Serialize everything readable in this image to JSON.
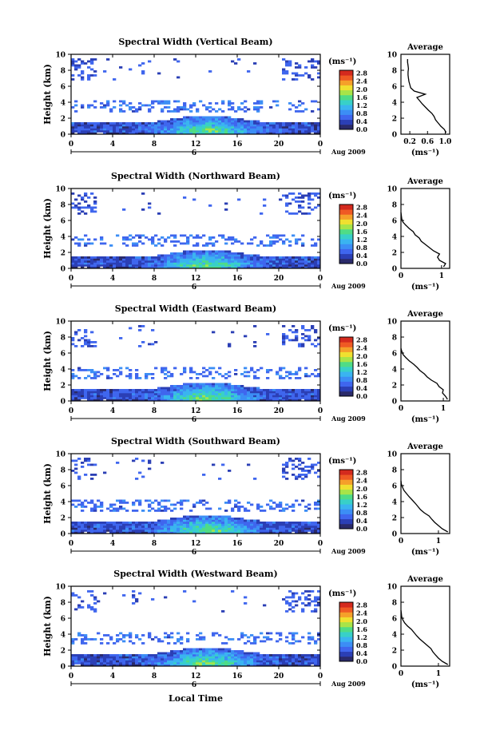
{
  "figure": {
    "xlabel": "Local Time",
    "ylabel": "Height (km)",
    "date_label": "Aug 2009",
    "day_label": "6",
    "units_label": "(ms⁻¹)",
    "avg_title": "Average",
    "avg_xlabel": "(ms⁻¹)"
  },
  "colorbar": {
    "ticks": [
      "0.0",
      "0.4",
      "0.8",
      "1.2",
      "1.6",
      "2.0",
      "2.4",
      "2.8"
    ],
    "colors": [
      "#2a2a6a",
      "#2b3fb5",
      "#3f66ee",
      "#3c8ef5",
      "#3ab4f0",
      "#38d0c8",
      "#4fdc86",
      "#a8e448",
      "#f0e030",
      "#f5a02a",
      "#ef5a24",
      "#d42a1e"
    ]
  },
  "chart_data": [
    {
      "type": "heatmap",
      "title": "Spectral Width (Vertical Beam)",
      "x_ticks": [
        "0",
        "4",
        "8",
        "12",
        "16",
        "20",
        "0"
      ],
      "xlim": [
        0,
        24
      ],
      "y_ticks": [
        "0",
        "2",
        "4",
        "6",
        "8",
        "10"
      ],
      "ylim": [
        0,
        10
      ],
      "value_range": [
        0.0,
        2.8
      ],
      "average_profile": {
        "type": "line",
        "title": "Average",
        "x_ticks": [
          "0.2",
          "0.6",
          "1.0"
        ],
        "xlim": [
          0,
          1.1
        ],
        "y_ticks": [
          "0",
          "2",
          "4",
          "6",
          "8",
          "10"
        ],
        "ylim": [
          0,
          10
        ],
        "height_km": [
          0.2,
          0.6,
          1.0,
          1.4,
          1.8,
          2.2,
          2.6,
          3.0,
          3.4,
          3.8,
          4.2,
          4.6,
          5.0,
          5.4,
          5.8,
          6.2,
          6.6,
          7.0,
          7.4,
          7.8,
          8.2,
          8.6,
          9.0,
          9.4
        ],
        "width_ms": [
          1.02,
          0.98,
          0.9,
          0.84,
          0.78,
          0.75,
          0.7,
          0.62,
          0.55,
          0.48,
          0.42,
          0.36,
          0.55,
          0.3,
          0.22,
          0.2,
          0.18,
          0.17,
          0.16,
          0.16,
          0.17,
          0.16,
          0.15,
          0.15
        ]
      }
    },
    {
      "type": "heatmap",
      "title": "Spectral Width (Northward Beam)",
      "x_ticks": [
        "0",
        "4",
        "8",
        "12",
        "16",
        "20",
        "0"
      ],
      "xlim": [
        0,
        24
      ],
      "y_ticks": [
        "0",
        "2",
        "4",
        "6",
        "8",
        "10"
      ],
      "ylim": [
        0,
        10
      ],
      "value_range": [
        0.0,
        2.8
      ],
      "average_profile": {
        "type": "line",
        "title": "Average",
        "x_ticks": [
          "0",
          "1"
        ],
        "xlim": [
          0,
          1.2
        ],
        "y_ticks": [
          "0",
          "2",
          "4",
          "6",
          "8",
          "10"
        ],
        "ylim": [
          0,
          10
        ],
        "height_km": [
          0.2,
          0.6,
          1.0,
          1.4,
          1.8,
          2.2,
          2.6,
          3.0,
          3.4,
          3.8,
          4.2,
          4.6,
          5.0,
          5.4,
          5.8,
          6.2,
          6.6,
          7.0
        ],
        "width_ms": [
          1.05,
          1.1,
          0.95,
          0.9,
          0.95,
          0.8,
          0.7,
          0.6,
          0.5,
          0.45,
          0.35,
          0.3,
          0.2,
          0.12,
          0.05,
          0.02,
          0.01,
          0.0
        ]
      }
    },
    {
      "type": "heatmap",
      "title": "Spectral Width (Eastward Beam)",
      "x_ticks": [
        "0",
        "4",
        "8",
        "12",
        "16",
        "20",
        "0"
      ],
      "xlim": [
        0,
        24
      ],
      "y_ticks": [
        "0",
        "2",
        "4",
        "6",
        "8",
        "10"
      ],
      "ylim": [
        0,
        10
      ],
      "value_range": [
        0.0,
        2.8
      ],
      "average_profile": {
        "type": "line",
        "title": "Average",
        "x_ticks": [
          "0",
          "1"
        ],
        "xlim": [
          0,
          1.15
        ],
        "y_ticks": [
          "0",
          "2",
          "4",
          "6",
          "8",
          "10"
        ],
        "ylim": [
          0,
          10
        ],
        "height_km": [
          0.2,
          0.6,
          1.0,
          1.4,
          1.8,
          2.2,
          2.6,
          3.0,
          3.4,
          3.8,
          4.2,
          4.6,
          5.0,
          5.4,
          5.8,
          6.2,
          6.6
        ],
        "width_ms": [
          1.1,
          1.05,
          0.98,
          1.0,
          0.9,
          0.85,
          0.72,
          0.62,
          0.55,
          0.45,
          0.38,
          0.3,
          0.2,
          0.12,
          0.05,
          0.02,
          0.0
        ]
      }
    },
    {
      "type": "heatmap",
      "title": "Spectral Width (Southward Beam)",
      "x_ticks": [
        "0",
        "4",
        "8",
        "12",
        "16",
        "20",
        "0"
      ],
      "xlim": [
        0,
        24
      ],
      "y_ticks": [
        "0",
        "2",
        "4",
        "6",
        "8",
        "10"
      ],
      "ylim": [
        0,
        10
      ],
      "value_range": [
        0.0,
        2.8
      ],
      "average_profile": {
        "type": "line",
        "title": "Average",
        "x_ticks": [
          "0",
          "1"
        ],
        "xlim": [
          0,
          1.3
        ],
        "y_ticks": [
          "0",
          "2",
          "4",
          "6",
          "8",
          "10"
        ],
        "ylim": [
          0,
          10
        ],
        "height_km": [
          0.2,
          0.6,
          1.0,
          1.4,
          1.8,
          2.2,
          2.6,
          3.0,
          3.4,
          3.8,
          4.2,
          4.6,
          5.0,
          5.4,
          5.8,
          6.2,
          6.6
        ],
        "width_ms": [
          1.25,
          1.1,
          1.0,
          0.9,
          0.82,
          0.75,
          0.62,
          0.52,
          0.45,
          0.38,
          0.3,
          0.22,
          0.15,
          0.08,
          0.04,
          0.01,
          0.0
        ]
      }
    },
    {
      "type": "heatmap",
      "title": "Spectral Width (Westward Beam)",
      "x_ticks": [
        "0",
        "4",
        "8",
        "12",
        "16",
        "20",
        "0"
      ],
      "xlim": [
        0,
        24
      ],
      "y_ticks": [
        "0",
        "2",
        "4",
        "6",
        "8",
        "10"
      ],
      "ylim": [
        0,
        10
      ],
      "value_range": [
        0.0,
        2.8
      ],
      "average_profile": {
        "type": "line",
        "title": "Average",
        "x_ticks": [
          "0",
          "1"
        ],
        "xlim": [
          0,
          1.3
        ],
        "y_ticks": [
          "0",
          "2",
          "4",
          "6",
          "8",
          "10"
        ],
        "ylim": [
          0,
          10
        ],
        "height_km": [
          0.2,
          0.6,
          1.0,
          1.4,
          1.8,
          2.2,
          2.6,
          3.0,
          3.4,
          3.8,
          4.2,
          4.6,
          5.0,
          5.4,
          5.8,
          6.2,
          6.6,
          7.0
        ],
        "width_ms": [
          1.25,
          1.1,
          1.0,
          0.92,
          0.85,
          0.8,
          0.7,
          0.6,
          0.5,
          0.42,
          0.35,
          0.28,
          0.18,
          0.1,
          0.05,
          0.02,
          0.01,
          0.0
        ]
      }
    }
  ]
}
